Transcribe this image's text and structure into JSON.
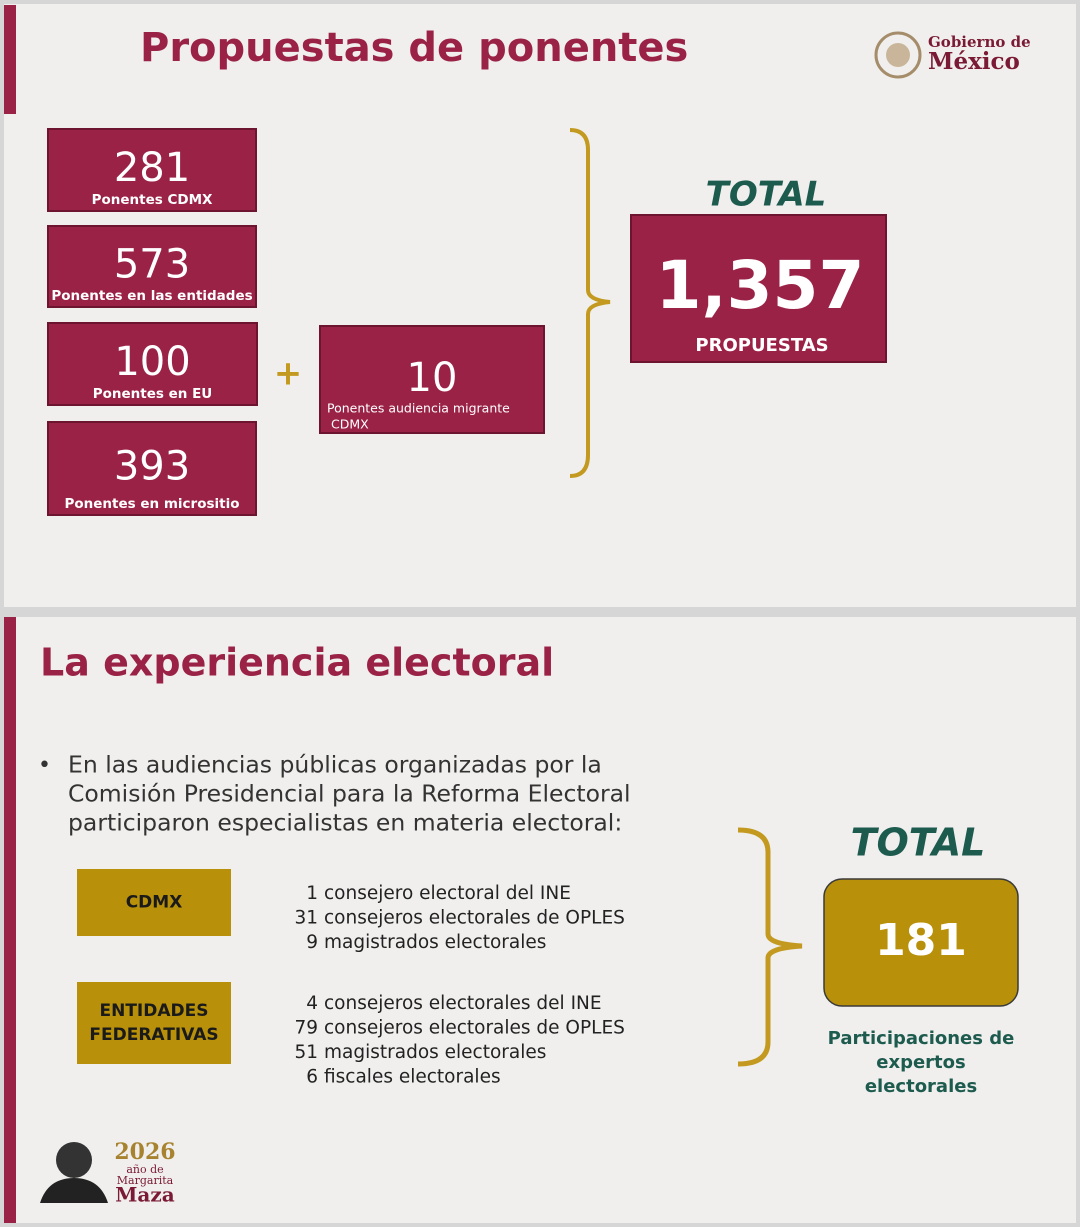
{
  "slide1": {
    "title": "Propuestas de ponentes",
    "logo": {
      "line1": "Gobierno de",
      "line2": "México"
    },
    "boxes": [
      {
        "number": "281",
        "label": [
          "Ponentes CDMX"
        ]
      },
      {
        "number": "573",
        "label": [
          "Ponentes en las entidades"
        ]
      },
      {
        "number": "100",
        "label": [
          "Ponentes en EU"
        ]
      },
      {
        "number": "393",
        "label": [
          "Ponentes en micrositio"
        ]
      }
    ],
    "plus": "+",
    "extra_box": {
      "number": "10",
      "label": [
        "Ponentes  audiencia migrante",
        "CDMX"
      ]
    },
    "total_heading": "TOTAL",
    "total": {
      "number": "1,357",
      "label": "PROPUESTAS"
    }
  },
  "slide2": {
    "title": "La experiencia electoral",
    "bullet": "•",
    "intro": [
      "En las audiencias públicas organizadas por la",
      "Comisión Presidencial para la Reforma Electoral",
      "participaron especialistas en materia electoral:"
    ],
    "groups": [
      {
        "label": [
          "CDMX"
        ],
        "items": [
          {
            "n": "1",
            "text": "consejero electoral del INE"
          },
          {
            "n": "31",
            "text": "consejeros electorales de OPLES"
          },
          {
            "n": "9",
            "text": "magistrados electorales"
          }
        ]
      },
      {
        "label": [
          "ENTIDADES",
          "FEDERATIVAS"
        ],
        "items": [
          {
            "n": "4",
            "text": "consejeros electorales del INE"
          },
          {
            "n": "79",
            "text": "consejeros electorales de OPLES"
          },
          {
            "n": "51",
            "text": "magistrados electorales"
          },
          {
            "n": "6",
            "text": "fiscales electorales"
          }
        ]
      }
    ],
    "total_heading": "TOTAL",
    "total": {
      "number": "181",
      "caption": [
        "Participaciones de",
        "expertos",
        "electorales"
      ]
    },
    "footer_logo": {
      "year": "2026",
      "line1": "año de",
      "line2": "Margarita",
      "line3": "Maza"
    }
  }
}
